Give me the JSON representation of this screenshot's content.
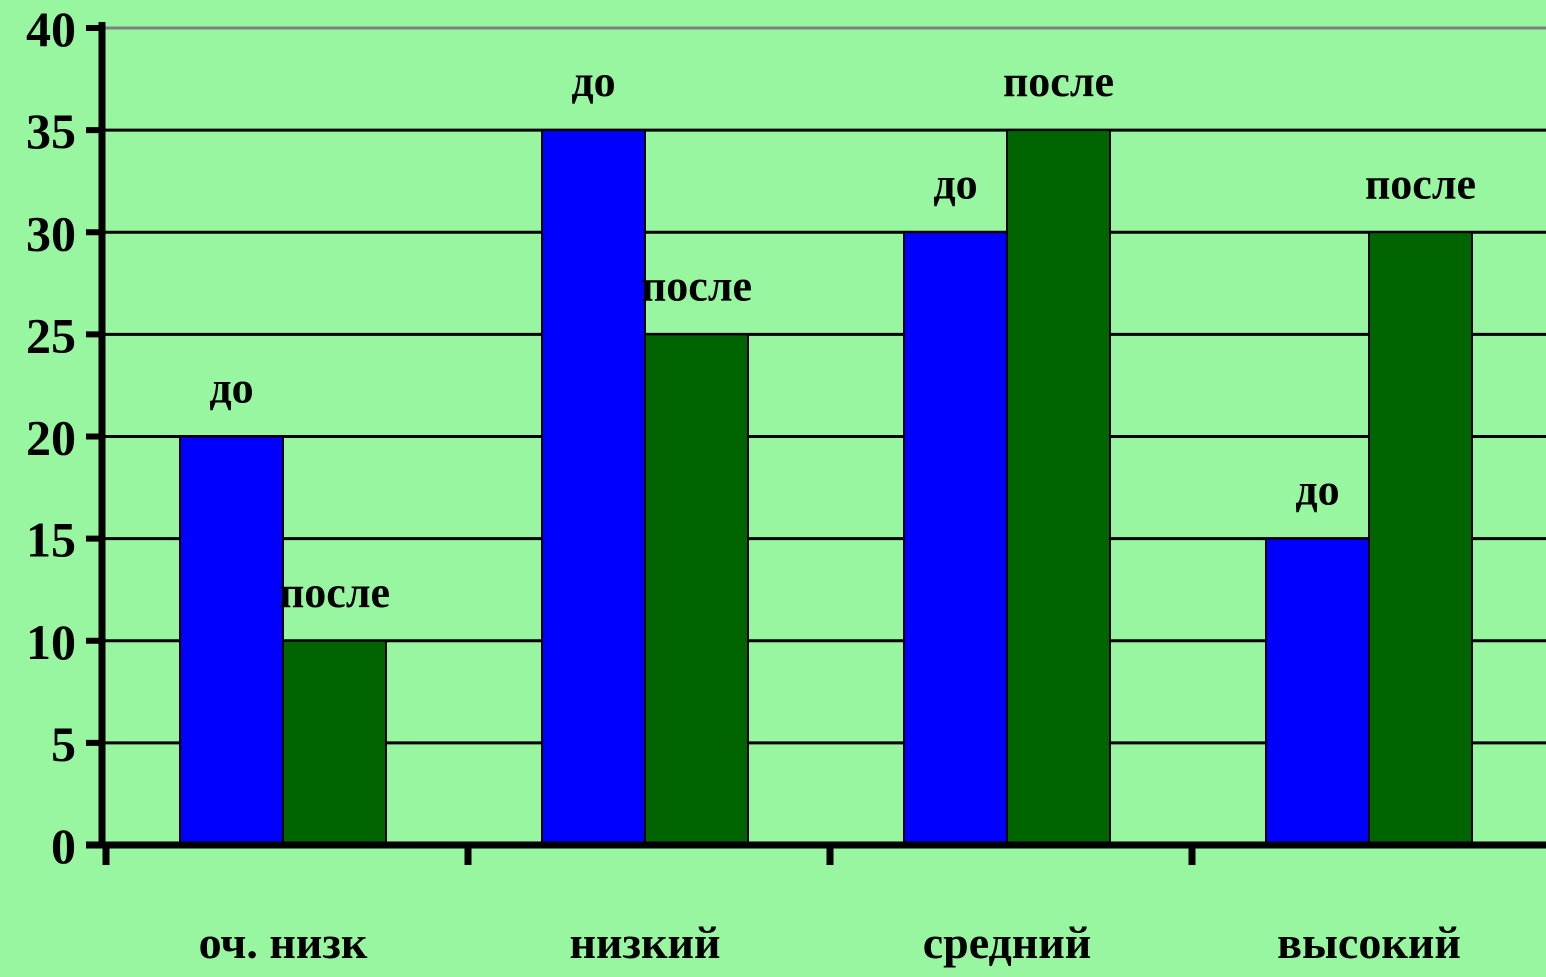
{
  "chart_data": {
    "type": "bar",
    "title": "",
    "xlabel": "",
    "ylabel": "",
    "ylim": [
      0,
      40
    ],
    "yticks": [
      0,
      5,
      10,
      15,
      20,
      25,
      30,
      35,
      40
    ],
    "grid": true,
    "legend": "none",
    "categories": [
      "оч. низк",
      "низкий",
      "средний",
      "высокий"
    ],
    "series": [
      {
        "label": "до",
        "color": "#0000ff",
        "values": [
          20,
          35,
          30,
          15
        ]
      },
      {
        "label": "после",
        "color": "#006400",
        "values": [
          10,
          25,
          35,
          30
        ]
      }
    ],
    "background_color": "#98f5a0"
  }
}
